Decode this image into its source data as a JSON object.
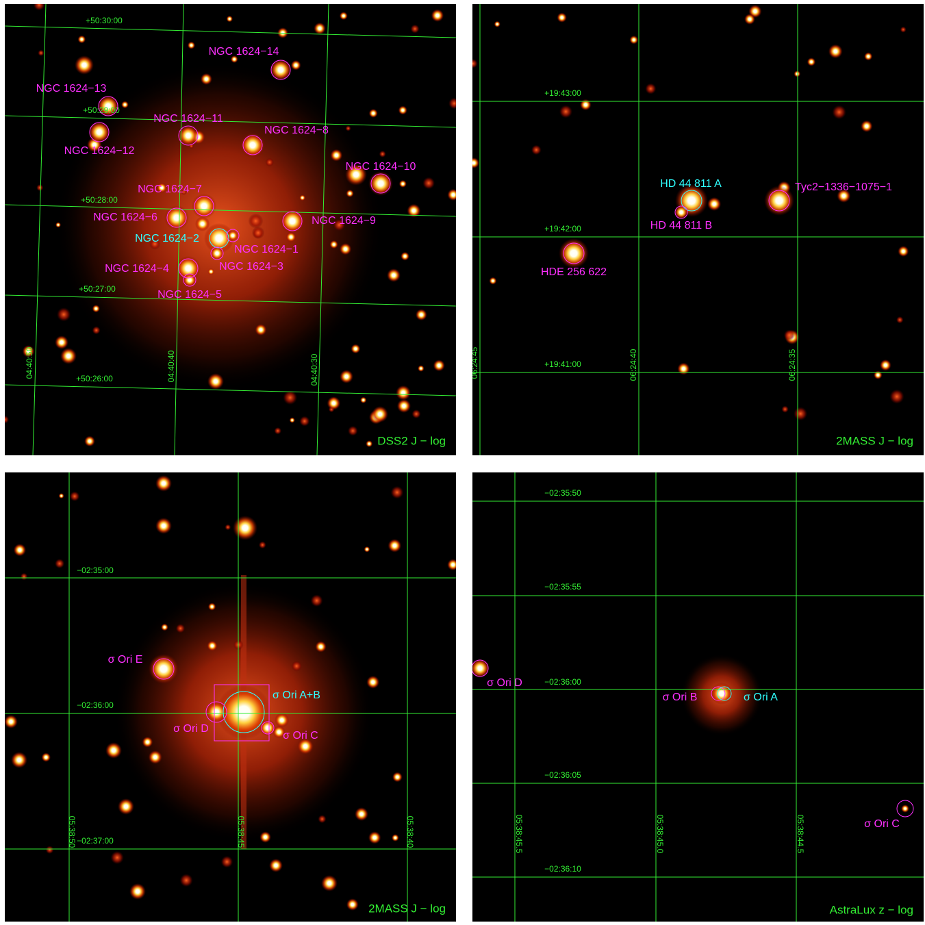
{
  "panels": [
    {
      "caption": "DSS2 J − log",
      "dec_labels": [
        "+50:30:00",
        "+50:29:00",
        "+50:28:00",
        "+50:27:00",
        "+50:26:00"
      ],
      "ra_labels": [
        "04:40:50",
        "04:40:40",
        "04:40:30"
      ],
      "objects": [
        "NGC 1624−14",
        "NGC 1624−13",
        "NGC 1624−12",
        "NGC 1624−11",
        "NGC 1624−8",
        "NGC 1624−10",
        "NGC 1624−7",
        "NGC 1624−6",
        "NGC 1624−9",
        "NGC 1624−2",
        "NGC 1624−1",
        "NGC 1624−3",
        "NGC 1624−4",
        "NGC 1624−5"
      ]
    },
    {
      "caption": "2MASS J − log",
      "dec_labels": [
        "+19:43:00",
        "+19:42:00",
        "+19:41:00"
      ],
      "ra_labels": [
        "06:24:45",
        "06:24:40",
        "06:24:35"
      ],
      "objects": [
        "HD 44 811 A",
        "HD 44 811 B",
        "Tyc2−1336−1075−1",
        "HDE 256 622"
      ]
    },
    {
      "caption": "2MASS J − log",
      "dec_labels": [
        "−02:35:00",
        "−02:36:00",
        "−02:37:00"
      ],
      "ra_labels": [
        "05:38:50",
        "05:38:45",
        "05:38:40"
      ],
      "objects": [
        "σ Ori E",
        "σ Ori A+B",
        "σ Ori D",
        "σ Ori C"
      ]
    },
    {
      "caption": "AstraLux z − log",
      "dec_labels": [
        "−02:35:50",
        "−02:35:55",
        "−02:36:00",
        "−02:36:05",
        "−02:36:10"
      ],
      "ra_labels": [
        "05:38:45.5",
        "05:38:45.0",
        "05:38:44.5"
      ],
      "objects": [
        "σ Ori D",
        "σ Ori B",
        "σ Ori A",
        "σ Ori C"
      ]
    }
  ]
}
